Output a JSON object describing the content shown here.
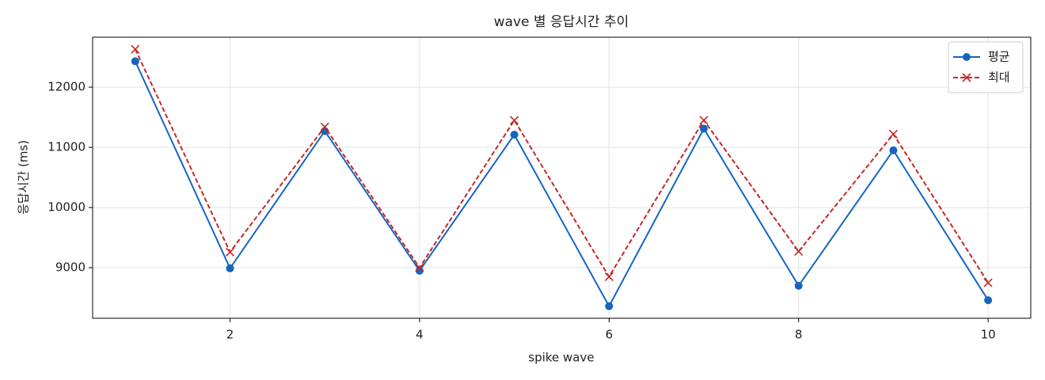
{
  "chart_data": {
    "type": "line",
    "title": "wave 별 응답시간 추이",
    "xlabel": "spike wave",
    "ylabel": "응답시간 (ms)",
    "x": [
      1,
      2,
      3,
      4,
      5,
      6,
      7,
      8,
      9,
      10
    ],
    "series": [
      {
        "name": "평균",
        "color": "#1565c0",
        "linestyle": "solid",
        "marker": "o",
        "values": [
          12430,
          8990,
          11270,
          8950,
          11210,
          8360,
          11310,
          8700,
          10950,
          8460
        ]
      },
      {
        "name": "최대",
        "color": "#c62828",
        "linestyle": "dashed",
        "marker": "x",
        "values": [
          12630,
          9260,
          11340,
          9000,
          11450,
          8850,
          11450,
          9270,
          11220,
          8750
        ]
      }
    ],
    "xlim": [
      0.55,
      10.45
    ],
    "ylim": [
      8160,
      12830
    ],
    "xticks": [
      2,
      4,
      6,
      8,
      10
    ],
    "yticks": [
      9000,
      10000,
      11000,
      12000
    ],
    "grid": true,
    "legend": "upper-right"
  }
}
